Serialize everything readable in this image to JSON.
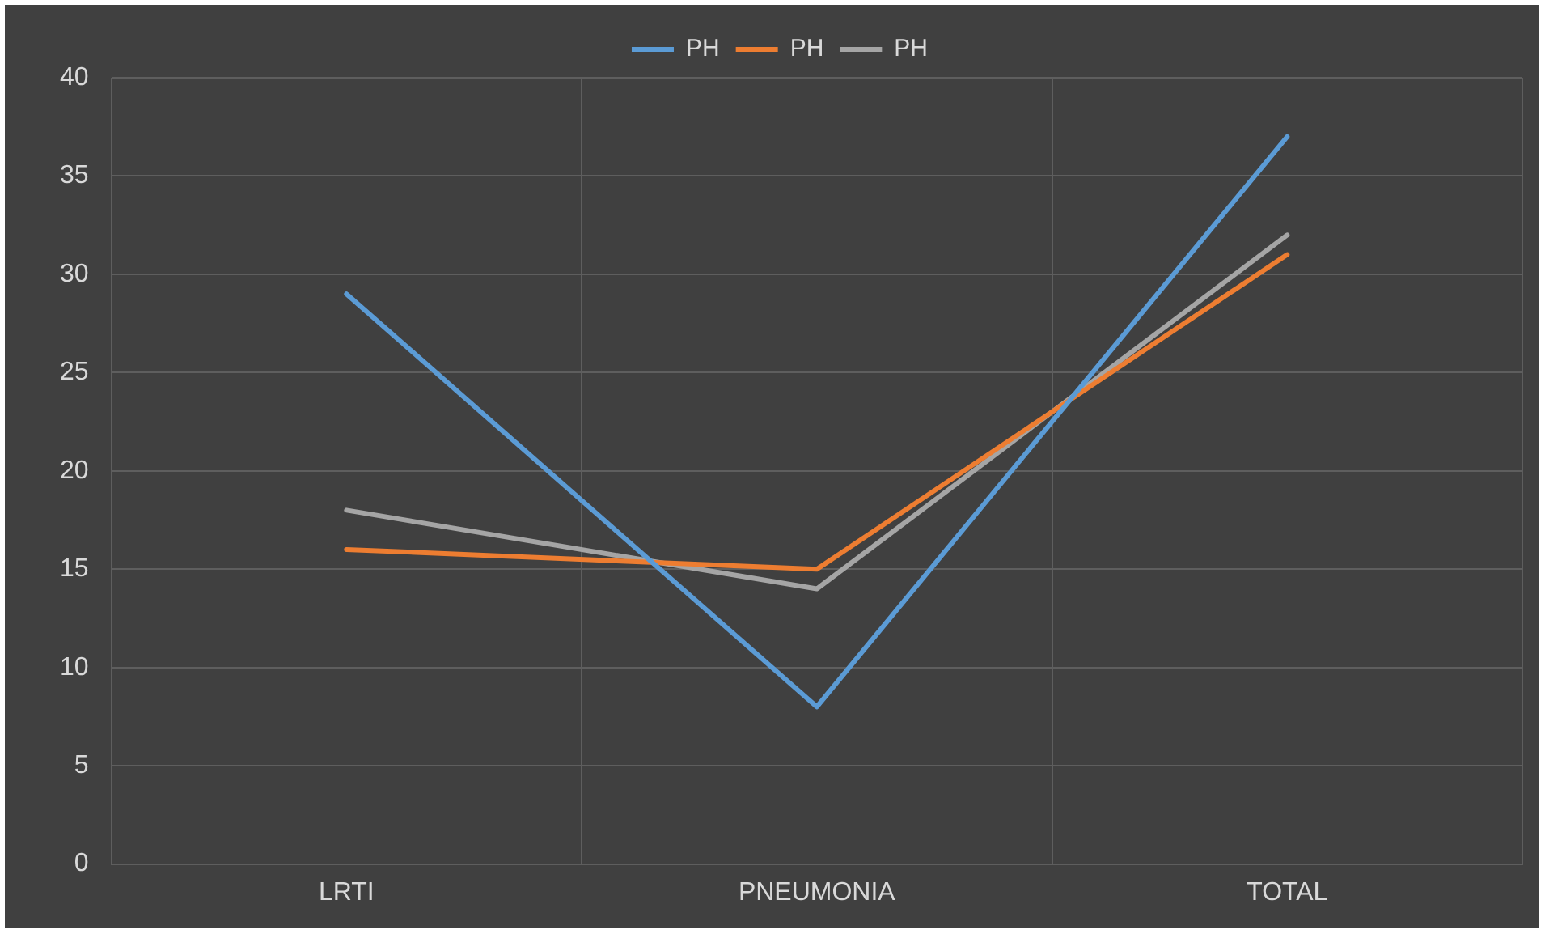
{
  "chart_data": {
    "type": "line",
    "categories": [
      "LRTI",
      "PNEUMONIA",
      "TOTAL"
    ],
    "series": [
      {
        "name": "PH",
        "color": "#5b9bd5",
        "values": [
          29,
          8,
          37
        ]
      },
      {
        "name": "PH",
        "color": "#ed7d31",
        "values": [
          16,
          15,
          31
        ]
      },
      {
        "name": "PH",
        "color": "#a5a5a5",
        "values": [
          18,
          14,
          32
        ]
      }
    ],
    "ylim": [
      0,
      40
    ],
    "yticks": [
      0,
      5,
      10,
      15,
      20,
      25,
      30,
      35,
      40
    ],
    "grid": true,
    "legend": "top",
    "marker": "none",
    "line_style": "solid"
  }
}
